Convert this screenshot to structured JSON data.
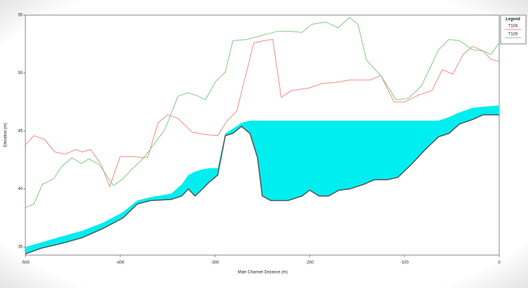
{
  "chart_data": {
    "type": "line",
    "xlabel": "Main Channel Distance (m)",
    "ylabel": "Elevation (m)",
    "legend_title": "Legend",
    "legend": "right",
    "xlim": [
      -500,
      0
    ],
    "xticks": [
      -500,
      -400,
      -300,
      -200,
      -100,
      0
    ],
    "ylim": [
      34.3,
      55
    ],
    "yticks": [
      35,
      40,
      45,
      50,
      55
    ],
    "band": {
      "color": "#00eef0",
      "line_color": "#555555",
      "x": [
        -500,
        -483,
        -462,
        -440,
        -418,
        -397,
        -382,
        -368,
        -346,
        -335,
        -328,
        -321,
        -313,
        -306,
        -297,
        -289,
        -281,
        -272,
        -263,
        -255,
        -250,
        -241,
        -223,
        -208,
        -200,
        -190,
        -180,
        -169,
        -158,
        -143,
        -132,
        -118,
        -107,
        -93,
        -78,
        -64,
        -53,
        -42,
        -28,
        -17,
        0
      ],
      "lower": [
        34.4,
        34.9,
        35.3,
        35.8,
        36.6,
        37.5,
        38.7,
        39.0,
        39.1,
        39.4,
        40.0,
        39.4,
        40.0,
        40.6,
        41.2,
        44.6,
        44.8,
        45.4,
        44.8,
        42.7,
        39.4,
        39.0,
        39.0,
        39.4,
        39.9,
        39.4,
        39.4,
        39.9,
        40.0,
        40.4,
        40.8,
        40.8,
        41.0,
        42.1,
        43.4,
        44.5,
        44.8,
        45.6,
        46.0,
        46.4,
        46.4
      ],
      "upper": [
        35.0,
        35.4,
        35.9,
        36.4,
        37.1,
        38.0,
        39.0,
        39.3,
        39.6,
        40.4,
        41.2,
        41.5,
        41.7,
        41.8,
        41.8,
        44.8,
        45.2,
        45.7,
        45.9,
        45.9,
        45.9,
        45.9,
        45.9,
        45.9,
        45.9,
        45.9,
        45.9,
        45.9,
        45.9,
        45.9,
        45.9,
        45.9,
        45.9,
        45.9,
        45.9,
        45.9,
        46.2,
        46.6,
        47.0,
        47.1,
        47.2
      ]
    },
    "series": [
      {
        "name": "T108",
        "color": "#f08a80",
        "x": [
          -500,
          -491,
          -480,
          -469,
          -458,
          -447,
          -440,
          -431,
          -420,
          -411,
          -400,
          -389,
          -371,
          -360,
          -350,
          -339,
          -324,
          -310,
          -297,
          -287,
          -277,
          -259,
          -248,
          -239,
          -230,
          -219,
          -201,
          -187,
          -172,
          -158,
          -136,
          -125,
          -111,
          -100,
          -85,
          -71,
          -60,
          -49,
          -38,
          -28,
          -17,
          -9,
          0
        ],
        "values": [
          43.8,
          44.6,
          44.3,
          43.2,
          43.0,
          43.4,
          43.2,
          43.4,
          42.1,
          40.2,
          42.8,
          42.8,
          42.7,
          45.7,
          46.4,
          46.1,
          44.9,
          44.7,
          44.6,
          45.9,
          46.7,
          52.6,
          52.8,
          52.9,
          47.9,
          48.5,
          48.7,
          49.1,
          49.2,
          49.4,
          49.4,
          49.8,
          47.5,
          47.5,
          48.1,
          48.5,
          50.3,
          49.9,
          51.6,
          52.3,
          51.9,
          51.2,
          51.0
        ]
      },
      {
        "name": "T109",
        "color": "#80c880",
        "x": [
          -500,
          -491,
          -482,
          -470,
          -462,
          -451,
          -441,
          -433,
          -422,
          -407,
          -398,
          -389,
          -375,
          -364,
          -353,
          -339,
          -328,
          -317,
          -310,
          -299,
          -289,
          -281,
          -266,
          -248,
          -234,
          -219,
          -208,
          -198,
          -183,
          -170,
          -158,
          -149,
          -140,
          -125,
          -109,
          -96,
          -82,
          -64,
          -53,
          -42,
          -28,
          -17,
          -9,
          0
        ],
        "values": [
          38.4,
          38.7,
          40.4,
          40.9,
          41.9,
          42.7,
          42.2,
          42.6,
          42.1,
          40.3,
          40.8,
          41.6,
          42.7,
          43.9,
          45.1,
          48.0,
          48.3,
          48.0,
          47.7,
          49.3,
          50.1,
          52.8,
          52.9,
          53.3,
          53.6,
          53.6,
          53.5,
          54.2,
          54.4,
          53.9,
          54.8,
          54.2,
          51.1,
          49.8,
          47.7,
          47.8,
          48.9,
          52.0,
          52.9,
          52.8,
          52.0,
          51.9,
          51.6,
          52.6
        ]
      }
    ]
  }
}
